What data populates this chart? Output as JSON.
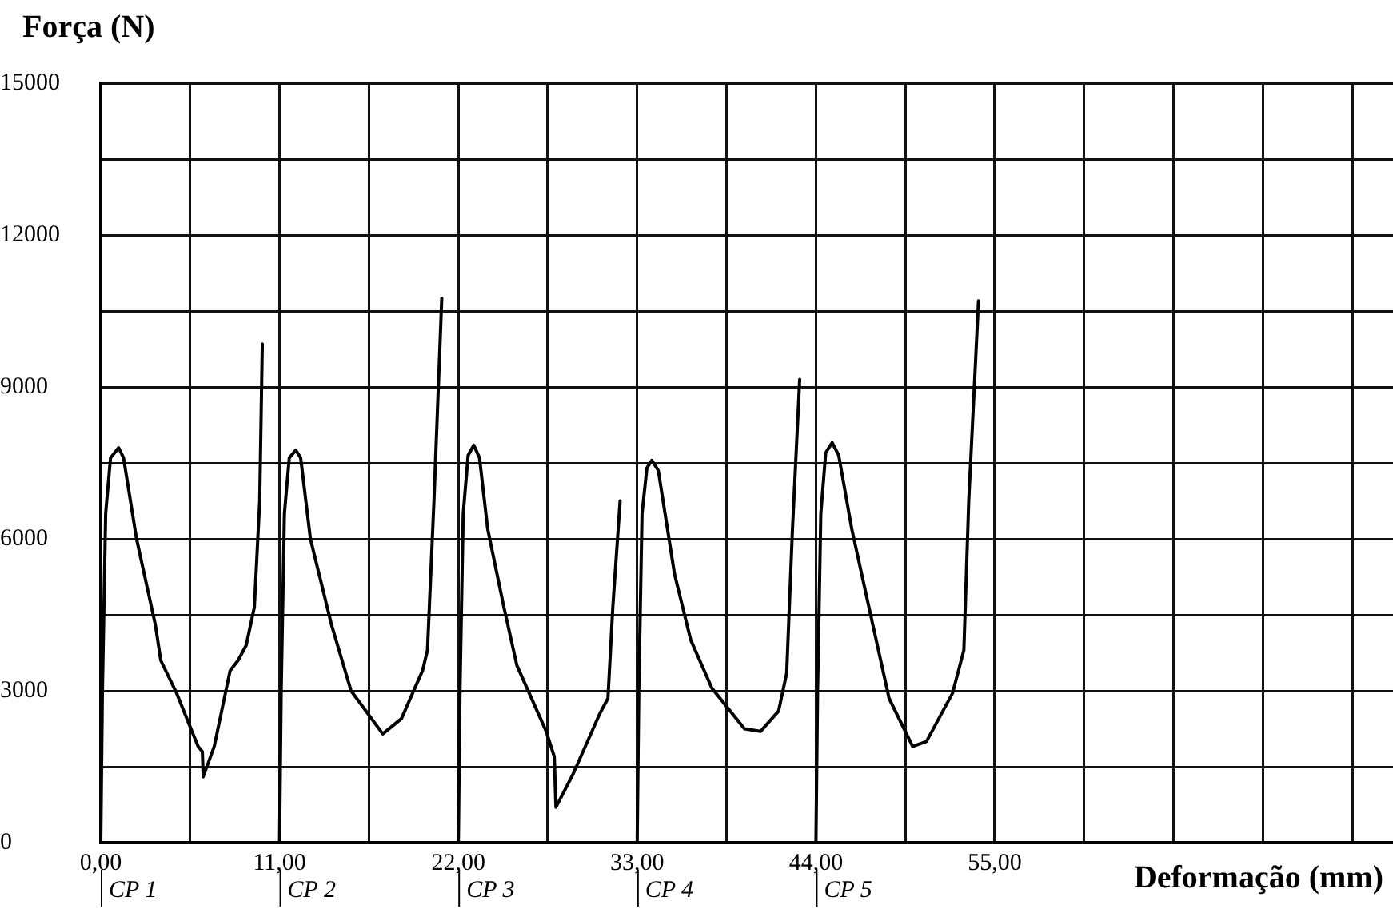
{
  "chart_data": {
    "type": "line",
    "xlabel": "Deformação (mm)",
    "ylabel": "Força (N)",
    "xlim": [
      0,
      79.5
    ],
    "ylim": [
      0,
      15000
    ],
    "xticks": [
      {
        "value": 0,
        "label": "0,00"
      },
      {
        "value": 5.5,
        "label": null
      },
      {
        "value": 11,
        "label": "11,00"
      },
      {
        "value": 16.5,
        "label": null
      },
      {
        "value": 22,
        "label": "22,00"
      },
      {
        "value": 27.5,
        "label": null
      },
      {
        "value": 33,
        "label": "33,00"
      },
      {
        "value": 38.5,
        "label": null
      },
      {
        "value": 44,
        "label": "44,00"
      },
      {
        "value": 49.5,
        "label": null
      },
      {
        "value": 55,
        "label": "55,00"
      },
      {
        "value": 60.5,
        "label": null
      },
      {
        "value": 66,
        "label": null
      },
      {
        "value": 71.5,
        "label": null
      },
      {
        "value": 77,
        "label": null
      }
    ],
    "yticks": [
      0,
      {
        "value": 1500,
        "label": null
      },
      3000,
      {
        "value": 4500,
        "label": null
      },
      6000,
      {
        "value": 7500,
        "label": null
      },
      9000,
      {
        "value": 10500,
        "label": null
      },
      12000,
      {
        "value": 13500,
        "label": null
      },
      15000
    ],
    "grid": true,
    "legend": false,
    "marker": "none",
    "line_style": "solid",
    "series": [
      {
        "color": "#000000",
        "x": [
          0,
          0.1,
          0.3,
          0.6,
          1.1,
          1.4,
          2.2,
          3.36,
          3.69,
          4.67,
          5.99,
          6.25,
          6.3,
          6.98,
          7.96,
          8.45,
          8.95,
          9.45,
          9.78,
          9.94
        ],
        "values": [
          0,
          3000,
          6500,
          7600,
          7800,
          7600,
          6000,
          4300,
          3600,
          2950,
          1900,
          1800,
          1300,
          1900,
          3400,
          3600,
          3900,
          4650,
          6750,
          9850
        ]
      },
      {
        "color": "#000000",
        "x": [
          11,
          11.1,
          11.3,
          11.6,
          12.0,
          12.3,
          12.9,
          14.2,
          15.4,
          17.35,
          18.5,
          19.8,
          20.1,
          20.5,
          20.98
        ],
        "values": [
          0,
          3000,
          6500,
          7600,
          7750,
          7600,
          6000,
          4300,
          3000,
          2150,
          2450,
          3400,
          3800,
          6750,
          10750
        ]
      },
      {
        "color": "#000000",
        "x": [
          22,
          22.1,
          22.3,
          22.6,
          22.95,
          23.3,
          23.8,
          24.8,
          25.6,
          27.4,
          27.9,
          28.0,
          29.05,
          30.7,
          31.2,
          31.5,
          31.95
        ],
        "values": [
          0,
          3000,
          6500,
          7650,
          7850,
          7600,
          6200,
          4650,
          3500,
          2200,
          1700,
          700,
          1350,
          2550,
          2850,
          4650,
          6750
        ]
      },
      {
        "color": "#000000",
        "x": [
          33,
          33.1,
          33.3,
          33.6,
          33.9,
          34.3,
          35.3,
          36.3,
          37.6,
          39.6,
          40.6,
          41.7,
          42.2,
          42.55,
          43.0
        ],
        "values": [
          0,
          3000,
          6500,
          7400,
          7550,
          7350,
          5300,
          4000,
          3050,
          2250,
          2200,
          2600,
          3350,
          6150,
          9150
        ]
      },
      {
        "color": "#000000",
        "x": [
          44,
          44.1,
          44.3,
          44.6,
          45.0,
          45.4,
          46.2,
          47.5,
          48.5,
          49.95,
          50.8,
          52.4,
          53.1,
          53.4,
          54.0
        ],
        "values": [
          0,
          3000,
          6500,
          7700,
          7900,
          7650,
          6200,
          4300,
          2850,
          1900,
          2000,
          2950,
          3800,
          6750,
          10700
        ]
      }
    ],
    "annotations": [
      "CP 1",
      "CP 2",
      "CP 3",
      "CP 4",
      "CP 5"
    ]
  }
}
